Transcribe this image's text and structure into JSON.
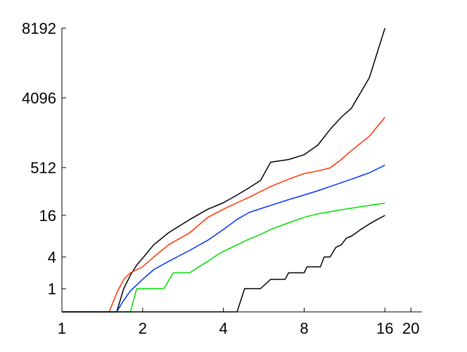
{
  "chart_data": {
    "type": "line",
    "title": "",
    "xlabel": "",
    "ylabel": "",
    "x_scale": "log2",
    "xlim": [
      1,
      22
    ],
    "x_ticks": [
      1,
      2,
      4,
      8,
      16,
      20
    ],
    "x_tick_labels": [
      "1",
      "2",
      "4",
      "8",
      "16",
      "20"
    ],
    "y_ticks": [
      1,
      4,
      16,
      512,
      4096,
      8192
    ],
    "y_tick_labels": [
      "1",
      "4",
      "16",
      "512",
      "4096",
      "8192"
    ],
    "grid": false,
    "legend": "none",
    "series": [
      {
        "color": "#000000",
        "points": [
          [
            1,
            0
          ],
          [
            1.6,
            0
          ],
          [
            1.7,
            1
          ],
          [
            1.8,
            1.8
          ],
          [
            1.9,
            2.8
          ],
          [
            2,
            3.8
          ],
          [
            2.2,
            6
          ],
          [
            2.5,
            9
          ],
          [
            3,
            14
          ],
          [
            3.5,
            25
          ],
          [
            4,
            40
          ],
          [
            4.5,
            70
          ],
          [
            5,
            120
          ],
          [
            5.5,
            200
          ],
          [
            6,
            600
          ],
          [
            7,
            650
          ],
          [
            8,
            750
          ],
          [
            9,
            1000
          ],
          [
            10,
            1600
          ],
          [
            11,
            2300
          ],
          [
            12,
            3000
          ],
          [
            14,
            5000
          ],
          [
            16,
            8192
          ]
        ]
      },
      {
        "color": "#ff3300",
        "points": [
          [
            1,
            0
          ],
          [
            1.5,
            0
          ],
          [
            1.6,
            0.8
          ],
          [
            1.7,
            1.5
          ],
          [
            1.8,
            2
          ],
          [
            2,
            2.6
          ],
          [
            2.2,
            4
          ],
          [
            2.5,
            6
          ],
          [
            3,
            9
          ],
          [
            3.5,
            15
          ],
          [
            4,
            25
          ],
          [
            4.5,
            40
          ],
          [
            5,
            60
          ],
          [
            5.5,
            90
          ],
          [
            6,
            130
          ],
          [
            7,
            220
          ],
          [
            8,
            330
          ],
          [
            9,
            400
          ],
          [
            10,
            500
          ],
          [
            11,
            650
          ],
          [
            12,
            850
          ],
          [
            14,
            1300
          ],
          [
            16,
            2300
          ]
        ]
      },
      {
        "color": "#0033ff",
        "points": [
          [
            1,
            0
          ],
          [
            1.6,
            0
          ],
          [
            1.7,
            0.5
          ],
          [
            1.8,
            0.9
          ],
          [
            2,
            1.5
          ],
          [
            2.2,
            2.3
          ],
          [
            2.5,
            3.3
          ],
          [
            3,
            5
          ],
          [
            3.5,
            7
          ],
          [
            4,
            10
          ],
          [
            4.5,
            14
          ],
          [
            5,
            20
          ],
          [
            5.5,
            26
          ],
          [
            6,
            33
          ],
          [
            7,
            50
          ],
          [
            8,
            70
          ],
          [
            9,
            95
          ],
          [
            10,
            130
          ],
          [
            11,
            170
          ],
          [
            12,
            220
          ],
          [
            14,
            350
          ],
          [
            16,
            550
          ]
        ]
      },
      {
        "color": "#00dd00",
        "points": [
          [
            1,
            0
          ],
          [
            1.8,
            0
          ],
          [
            1.85,
            0.5
          ],
          [
            1.9,
            1
          ],
          [
            2,
            1
          ],
          [
            2.4,
            1
          ],
          [
            2.6,
            2
          ],
          [
            3,
            2
          ],
          [
            3.2,
            2.5
          ],
          [
            3.5,
            3.3
          ],
          [
            3.8,
            4.3
          ],
          [
            4,
            4.8
          ],
          [
            4.3,
            5.5
          ],
          [
            4.7,
            6.5
          ],
          [
            5,
            7.3
          ],
          [
            5.5,
            8.5
          ],
          [
            6,
            10
          ],
          [
            7,
            12.5
          ],
          [
            8,
            15
          ],
          [
            9,
            18
          ],
          [
            10,
            21
          ],
          [
            11,
            24
          ],
          [
            12,
            27
          ],
          [
            14,
            33
          ],
          [
            16,
            39
          ]
        ]
      },
      {
        "color": "#000000",
        "points": [
          [
            1,
            0
          ],
          [
            4.5,
            0
          ],
          [
            4.8,
            1
          ],
          [
            5.5,
            1
          ],
          [
            6,
            1.5
          ],
          [
            6.8,
            1.5
          ],
          [
            7,
            2
          ],
          [
            8,
            2
          ],
          [
            8.2,
            2.6
          ],
          [
            9.2,
            2.6
          ],
          [
            9.5,
            4
          ],
          [
            10,
            4
          ],
          [
            10.5,
            5.5
          ],
          [
            11,
            6
          ],
          [
            11.5,
            7.5
          ],
          [
            12,
            8
          ],
          [
            13,
            10
          ],
          [
            14,
            12
          ],
          [
            15,
            14
          ],
          [
            16,
            16
          ]
        ]
      }
    ]
  }
}
